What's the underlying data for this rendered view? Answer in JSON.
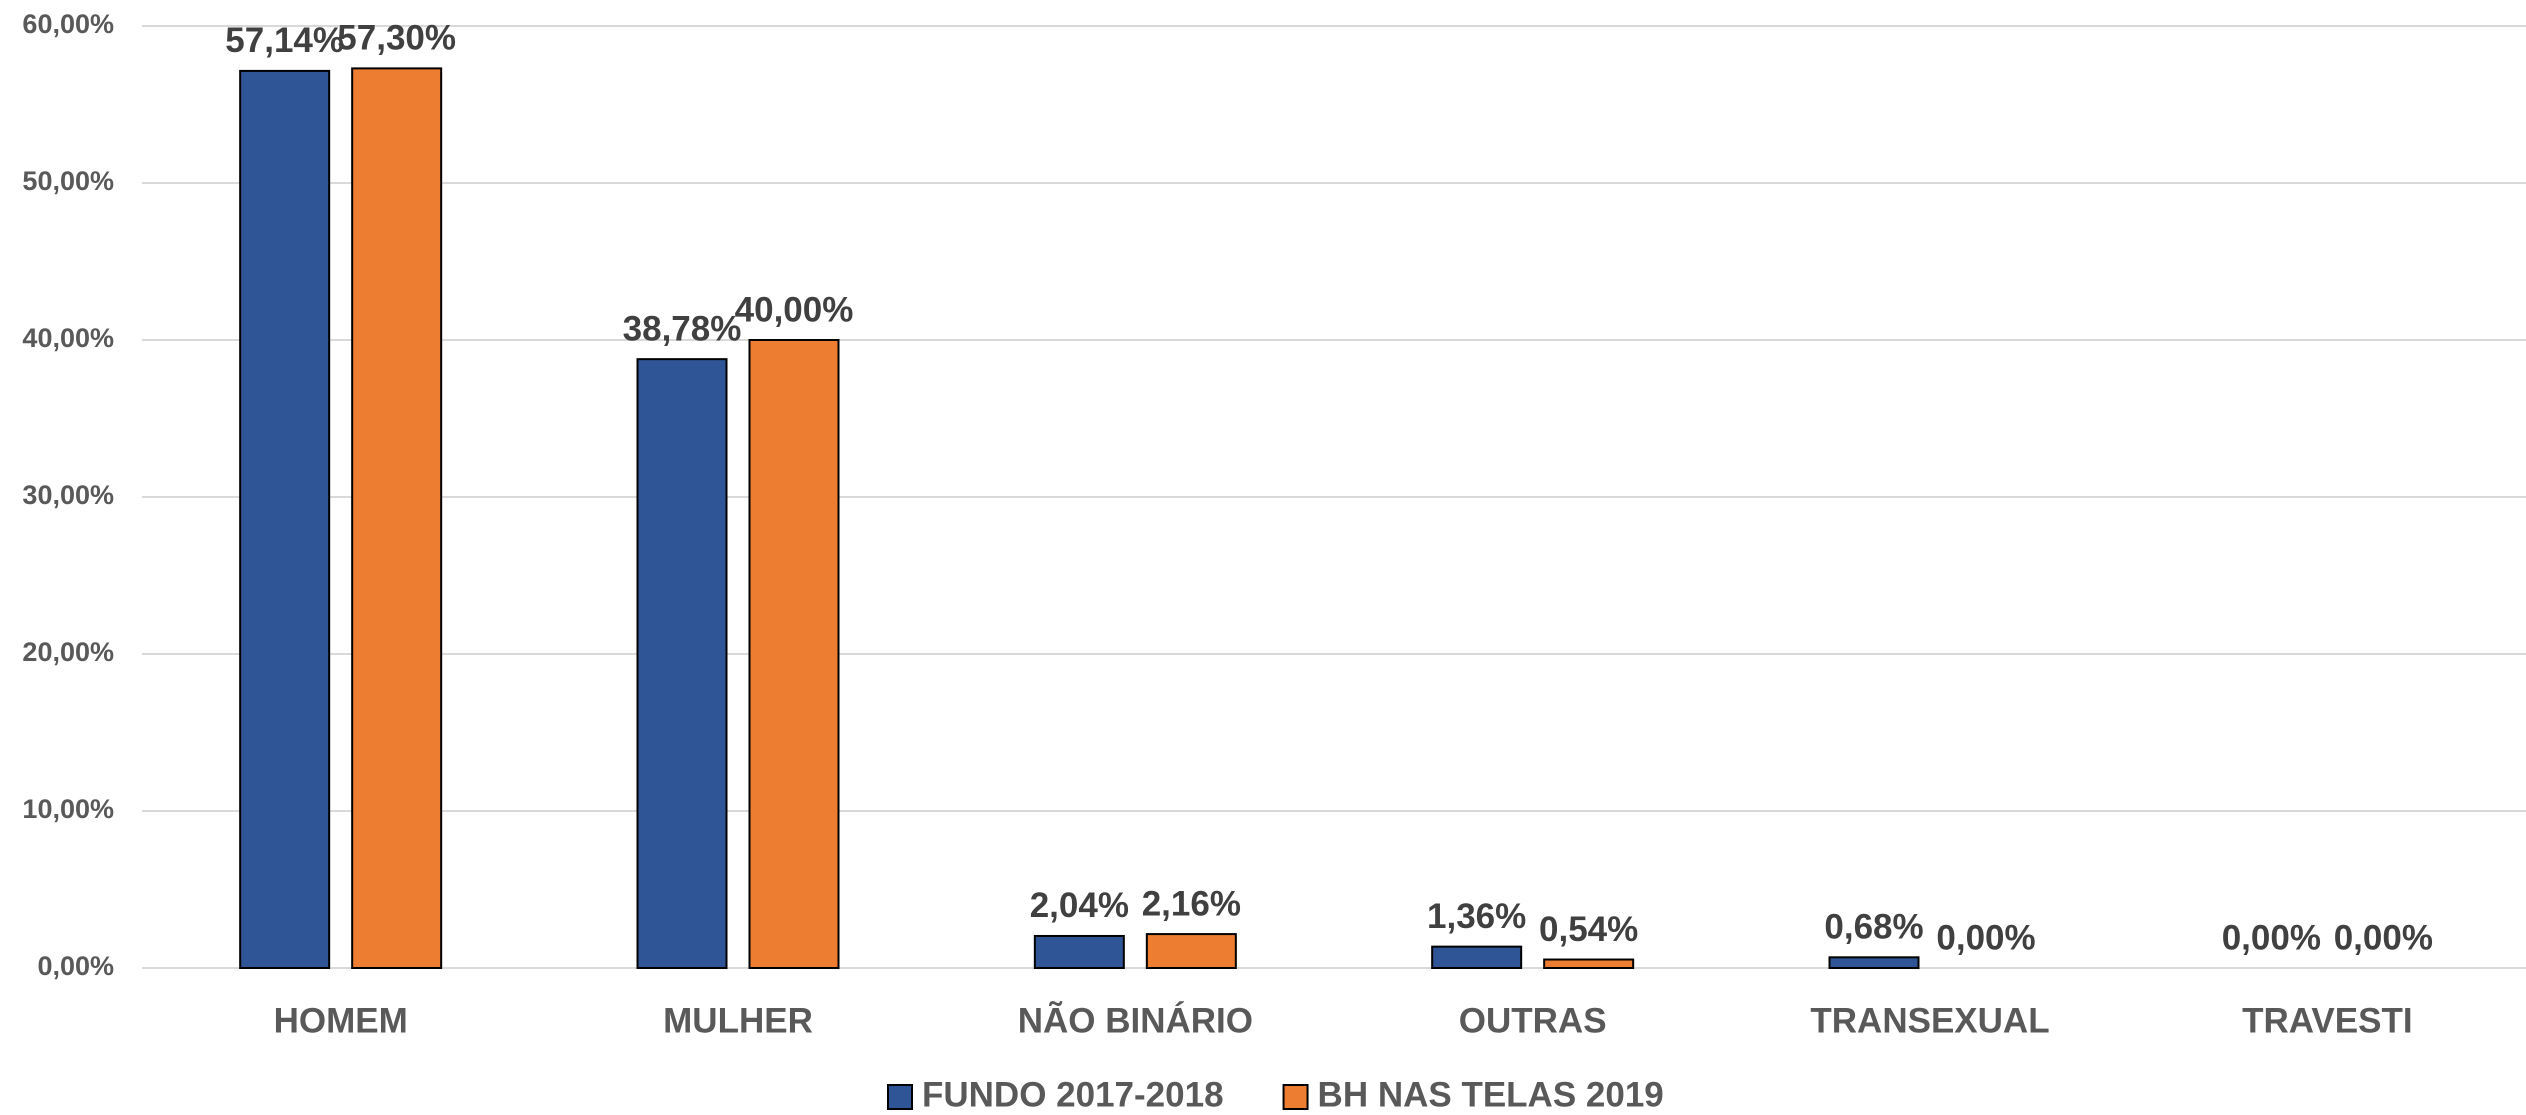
{
  "chart_data": {
    "type": "bar",
    "categories": [
      "HOMEM",
      "MULHER",
      "NÃO BINÁRIO",
      "OUTRAS",
      "TRANSEXUAL",
      "TRAVESTI"
    ],
    "series": [
      {
        "name": "FUNDO 2017-2018",
        "color": "#2f5597",
        "values": [
          57.14,
          38.78,
          2.04,
          1.36,
          0.68,
          0
        ],
        "value_labels": [
          "57,14%",
          "38,78%",
          "2,04%",
          "1,36%",
          "0,68%",
          "0,00%"
        ]
      },
      {
        "name": "BH NAS TELAS 2019",
        "color": "#ed7d31",
        "values": [
          57.3,
          40,
          2.16,
          0.54,
          0,
          0
        ],
        "value_labels": [
          "57,30%",
          "40,00%",
          "2,16%",
          "0,54%",
          "0,00%",
          "0,00%"
        ]
      }
    ],
    "ylim": [
      0,
      60
    ],
    "yticks": [
      {
        "value": 0,
        "label": "0,00%"
      },
      {
        "value": 10,
        "label": "10,00%"
      },
      {
        "value": 20,
        "label": "20,00%"
      },
      {
        "value": 30,
        "label": "30,00%"
      },
      {
        "value": 40,
        "label": "40,00%"
      },
      {
        "value": 50,
        "label": "50,00%"
      },
      {
        "value": 60,
        "label": "60,00%"
      }
    ],
    "grid": true,
    "legend": "bottom"
  }
}
